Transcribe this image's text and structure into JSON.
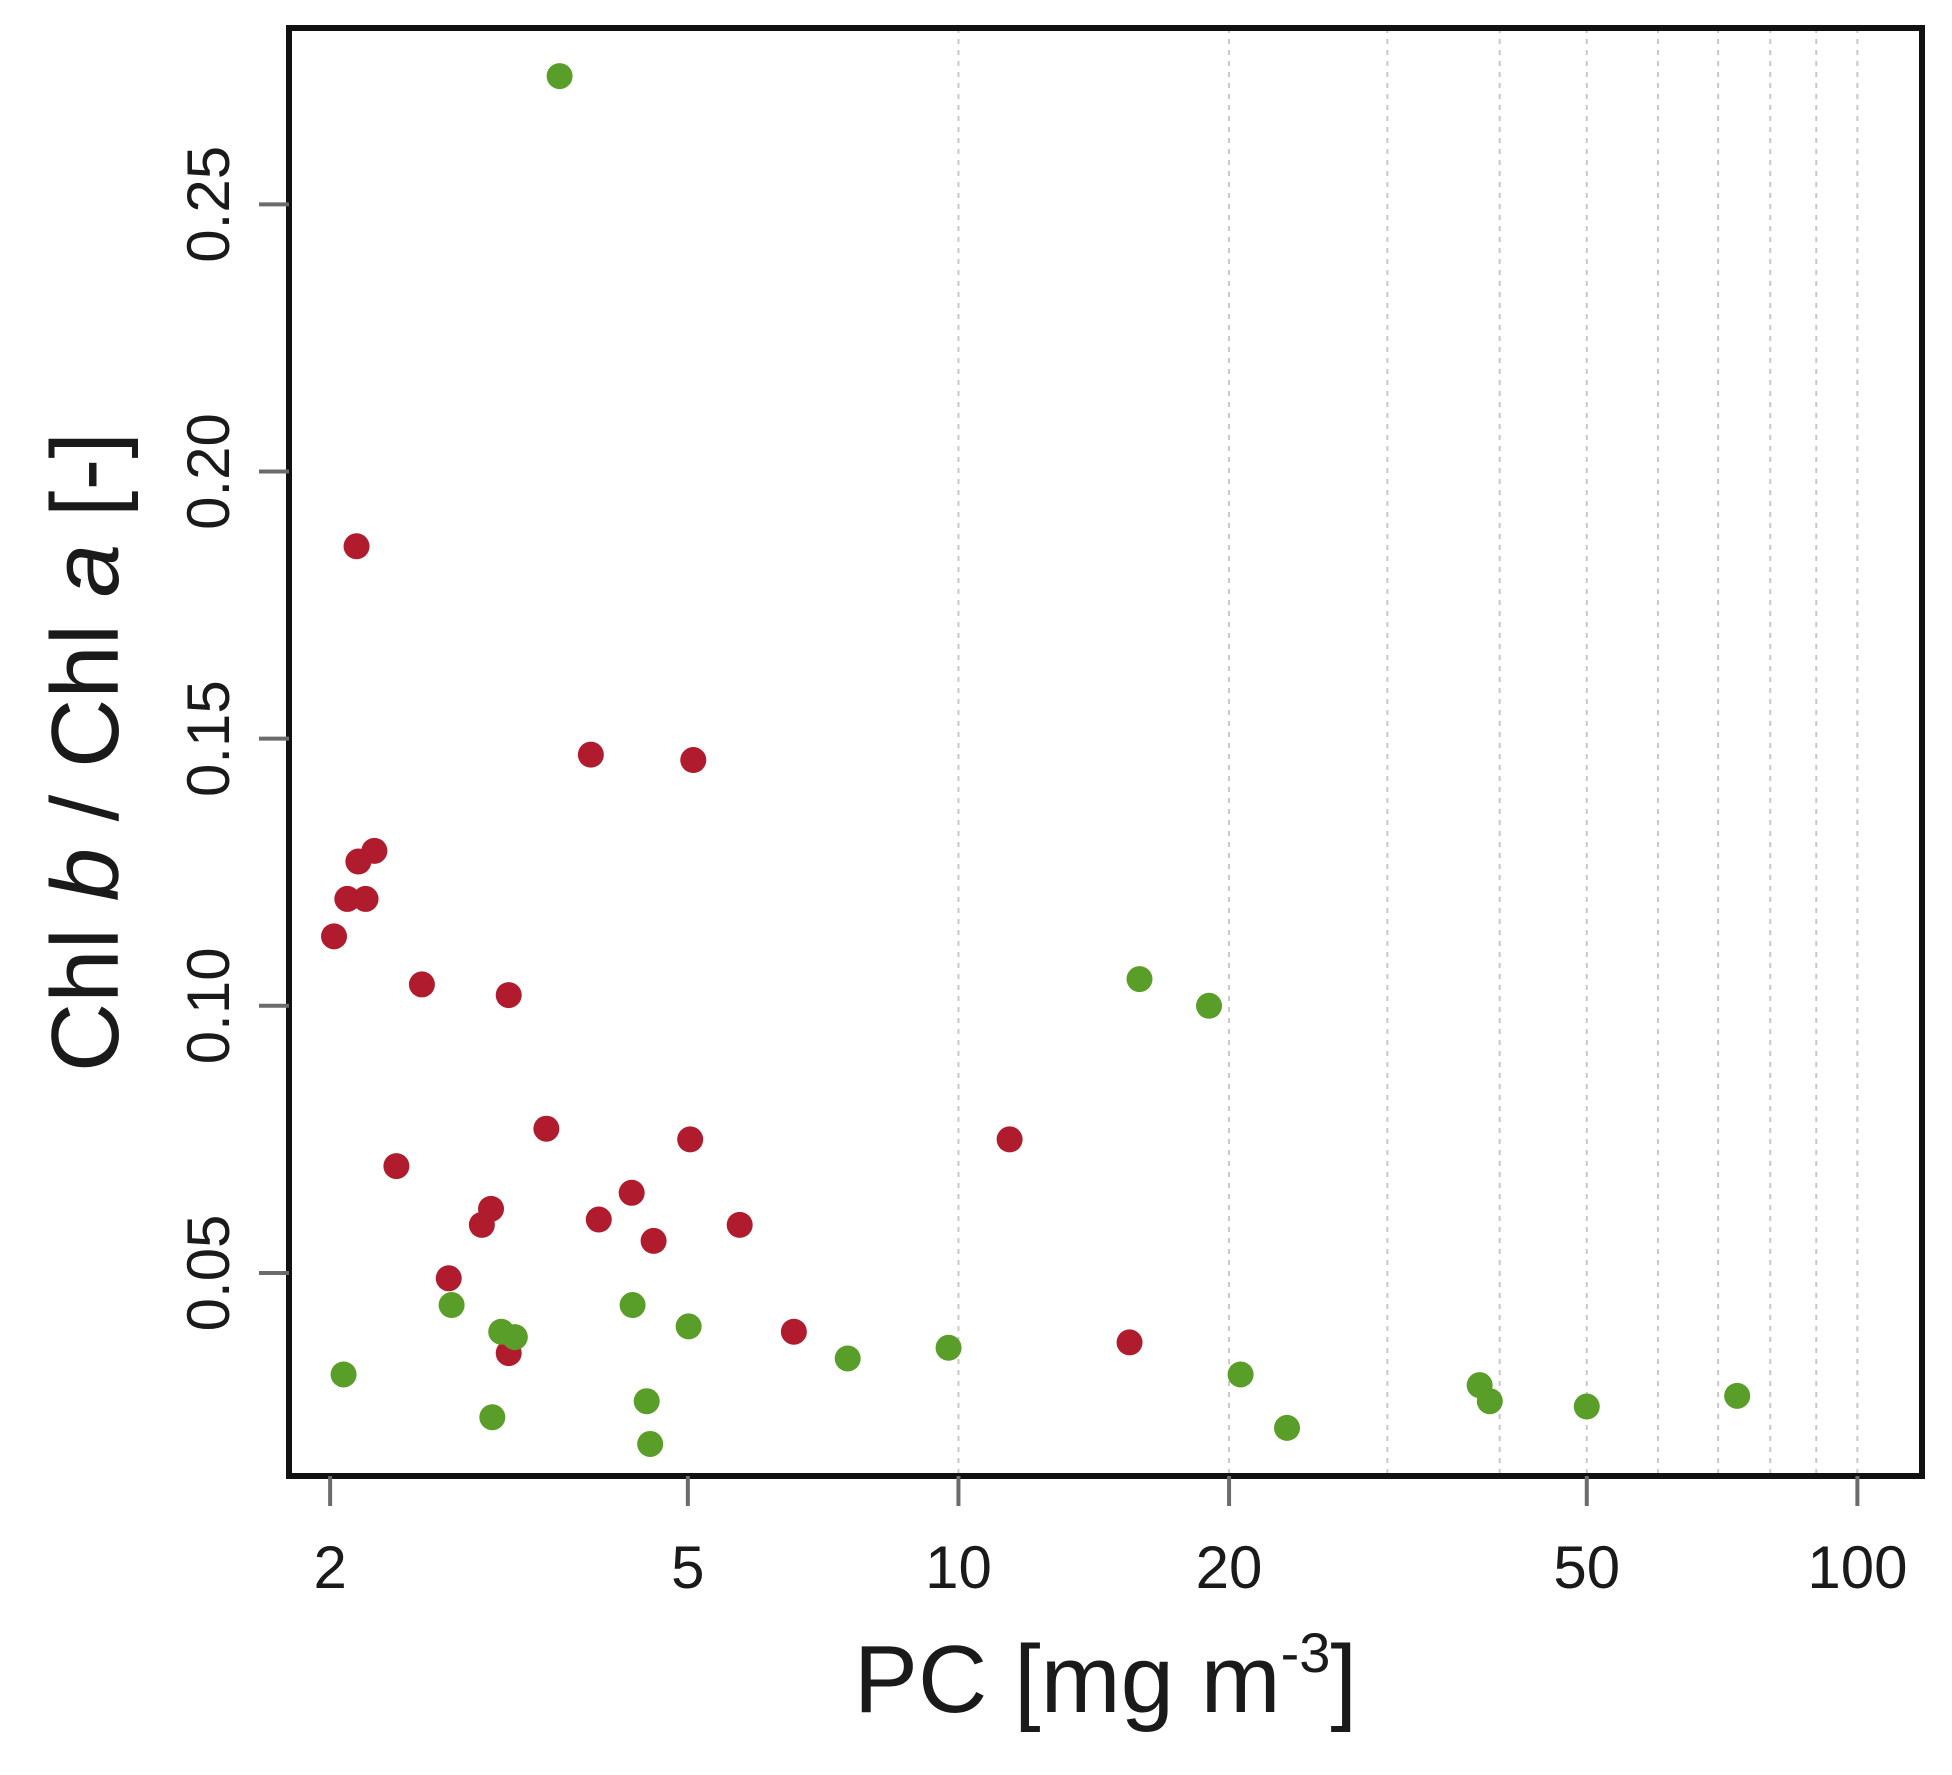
{
  "chart_data": {
    "type": "scatter",
    "title": "",
    "xlabel": {
      "base": "PC [mg m",
      "superscript": "-3",
      "close": "]"
    },
    "ylabel": {
      "parts": [
        {
          "text": "Chl ",
          "italic": false
        },
        {
          "text": "b",
          "italic": true
        },
        {
          "text": " / Chl ",
          "italic": false
        },
        {
          "text": "a",
          "italic": true
        },
        {
          "text": " [-]",
          "italic": false
        }
      ]
    },
    "x_scale": "log",
    "xlim": [
      1.8,
      118
    ],
    "ylim": [
      0.012,
      0.283
    ],
    "x_ticks": [
      2,
      5,
      10,
      20,
      50,
      100
    ],
    "x_tick_labels": [
      "2",
      "5",
      "10",
      "20",
      "50",
      "100"
    ],
    "y_ticks": [
      0.05,
      0.1,
      0.15,
      0.2,
      0.25
    ],
    "y_tick_labels": [
      "0.05",
      "0.10",
      "0.15",
      "0.20",
      "0.25"
    ],
    "x_gridlines": [
      10,
      20,
      30,
      40,
      50,
      60,
      70,
      80,
      90,
      100
    ],
    "grid_style": "dotted vertical",
    "colors": {
      "red": "#b01c2e",
      "green": "#5a9e2a",
      "axis": "#111111",
      "grid": "#c8c8c8"
    },
    "series": [
      {
        "name": "red",
        "color": "#b01c2e",
        "points": [
          [
            2.14,
            0.186
          ],
          [
            2.02,
            0.113
          ],
          [
            2.09,
            0.12
          ],
          [
            2.15,
            0.127
          ],
          [
            2.19,
            0.12
          ],
          [
            2.24,
            0.129
          ],
          [
            2.37,
            0.07
          ],
          [
            2.53,
            0.104
          ],
          [
            2.71,
            0.049
          ],
          [
            2.95,
            0.059
          ],
          [
            3.02,
            0.062
          ],
          [
            3.16,
            0.102
          ],
          [
            3.16,
            0.035
          ],
          [
            3.48,
            0.077
          ],
          [
            3.9,
            0.147
          ],
          [
            3.98,
            0.06
          ],
          [
            4.33,
            0.065
          ],
          [
            4.58,
            0.056
          ],
          [
            5.03,
            0.075
          ],
          [
            5.07,
            0.146
          ],
          [
            5.71,
            0.059
          ],
          [
            6.56,
            0.039
          ],
          [
            11.4,
            0.075
          ],
          [
            15.5,
            0.037
          ]
        ]
      },
      {
        "name": "green",
        "color": "#5a9e2a",
        "points": [
          [
            3.6,
            0.274
          ],
          [
            2.07,
            0.031
          ],
          [
            2.73,
            0.044
          ],
          [
            3.03,
            0.023
          ],
          [
            3.1,
            0.039
          ],
          [
            3.21,
            0.038
          ],
          [
            4.34,
            0.044
          ],
          [
            4.5,
            0.026
          ],
          [
            4.54,
            0.018
          ],
          [
            5.01,
            0.04
          ],
          [
            7.53,
            0.034
          ],
          [
            9.75,
            0.036
          ],
          [
            15.9,
            0.105
          ],
          [
            19.0,
            0.1
          ],
          [
            20.6,
            0.031
          ],
          [
            23.2,
            0.021
          ],
          [
            38.0,
            0.029
          ],
          [
            39.0,
            0.026
          ],
          [
            50.0,
            0.025
          ],
          [
            73.5,
            0.027
          ]
        ]
      }
    ]
  }
}
